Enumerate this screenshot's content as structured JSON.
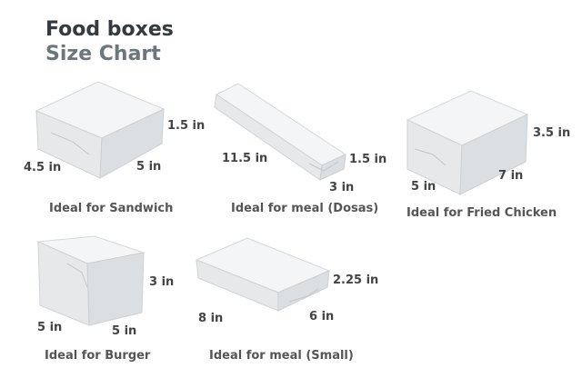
{
  "header": {
    "title": "Food boxes",
    "subtitle": "Size Chart"
  },
  "boxes": [
    {
      "id": "sandwich",
      "caption": "Ideal for Sandwich",
      "dims": [
        "4.5 in",
        "5 in",
        "1.5 in"
      ]
    },
    {
      "id": "dosas",
      "caption": "Ideal for meal (Dosas)",
      "dims": [
        "11.5 in",
        "3 in",
        "1.5 in"
      ]
    },
    {
      "id": "fried-chicken",
      "caption": "Ideal for Fried Chicken",
      "dims": [
        "5 in",
        "7 in",
        "3.5 in"
      ]
    },
    {
      "id": "burger",
      "caption": "Ideal for Burger",
      "dims": [
        "5 in",
        "5 in",
        "3 in"
      ]
    },
    {
      "id": "meal-small",
      "caption": "Ideal for meal (Small)",
      "dims": [
        "8 in",
        "6 in",
        "2.25 in"
      ]
    }
  ]
}
